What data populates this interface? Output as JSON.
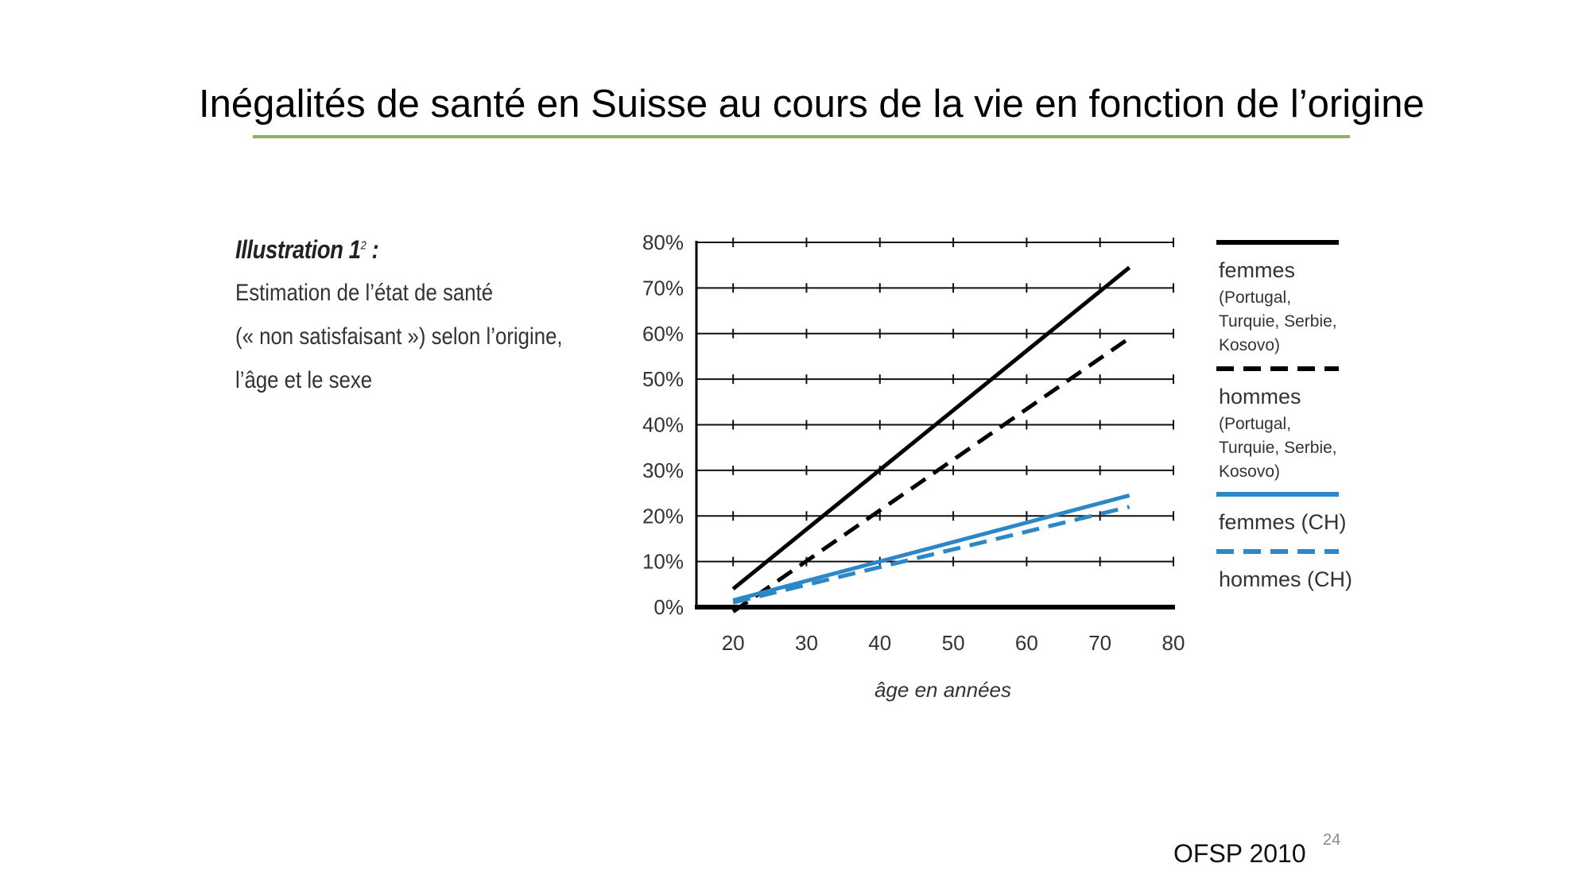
{
  "slide": {
    "title": "Inégalités de santé en Suisse au cours de la vie en fonction de l’origine",
    "source": "OFSP 2010",
    "page_number": "24",
    "accent_color": "#8cb35a"
  },
  "caption": {
    "heading": "Illustration 1",
    "heading_sup": "2",
    "heading_suffix": " :",
    "lines": [
      "Estimation de l’état de santé",
      "(« non satisfaisant ») selon l’origine,",
      "l’âge et le sexe"
    ]
  },
  "chart_data": {
    "type": "line",
    "xlabel": "âge en années",
    "ylabel": "",
    "xlim": [
      15,
      80
    ],
    "ylim": [
      0,
      80
    ],
    "x_ticks": [
      20,
      30,
      40,
      50,
      60,
      70,
      80
    ],
    "y_ticks": [
      0,
      10,
      20,
      30,
      40,
      50,
      60,
      70,
      80
    ],
    "y_tick_labels": [
      "0%",
      "10%",
      "20%",
      "30%",
      "40%",
      "50%",
      "60%",
      "70%",
      "80%"
    ],
    "grid": "horizontal",
    "legend_position": "right",
    "series": [
      {
        "name": "femmes",
        "name_detail": [
          "(Portugal,",
          "Turquie, Serbie,",
          "Kosovo)"
        ],
        "color": "#000000",
        "style": "solid",
        "x": [
          20,
          74
        ],
        "y": [
          4,
          74.5
        ]
      },
      {
        "name": "hommes",
        "name_detail": [
          "(Portugal,",
          "Turquie, Serbie,",
          "Kosovo)"
        ],
        "color": "#000000",
        "style": "dashed",
        "x": [
          20,
          74
        ],
        "y": [
          -1,
          59
        ]
      },
      {
        "name": "femmes (CH)",
        "name_detail": [],
        "color": "#2b87c5",
        "style": "solid",
        "x": [
          20,
          74
        ],
        "y": [
          1.5,
          24.5
        ]
      },
      {
        "name": "hommes (CH)",
        "name_detail": [],
        "color": "#2b87c5",
        "style": "dashed",
        "x": [
          20,
          74
        ],
        "y": [
          1,
          22
        ]
      }
    ]
  }
}
